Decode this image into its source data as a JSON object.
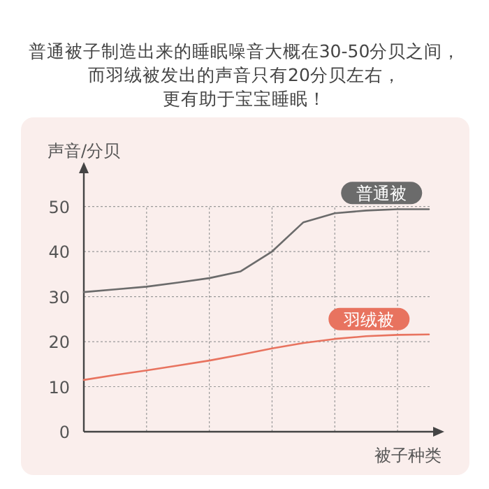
{
  "chart_data": {
    "type": "line",
    "title": "普通被子制造出来的睡眠噪音大概在30-50分贝之间，",
    "subtitle": "而羽绒被发出的声音只有20分贝左右，",
    "annotations": [
      "更有助于宝宝睡眠！"
    ],
    "ylabel": "声音/分贝",
    "xlabel": "被子种类",
    "categories": [
      null,
      null,
      null,
      null,
      null,
      null,
      null,
      null,
      null,
      null,
      null,
      null
    ],
    "ylim": [
      0,
      58
    ],
    "yticks": [
      0,
      10,
      20,
      30,
      40,
      50
    ],
    "grid": true,
    "tick_labels": "y",
    "line_style": "solid",
    "series": [
      {
        "name": "普通被",
        "color": "#6b6b6b",
        "values": [
          31,
          31.6,
          32.2,
          33.1,
          34.1,
          35.6,
          40,
          46.5,
          48.5,
          49.1,
          49.4,
          49.4
        ]
      },
      {
        "name": "羽绒被",
        "color": "#e8735f",
        "values": [
          11.5,
          12.6,
          13.6,
          14.7,
          15.8,
          17.1,
          18.5,
          19.7,
          20.6,
          21.2,
          21.5,
          21.6
        ]
      }
    ]
  }
}
